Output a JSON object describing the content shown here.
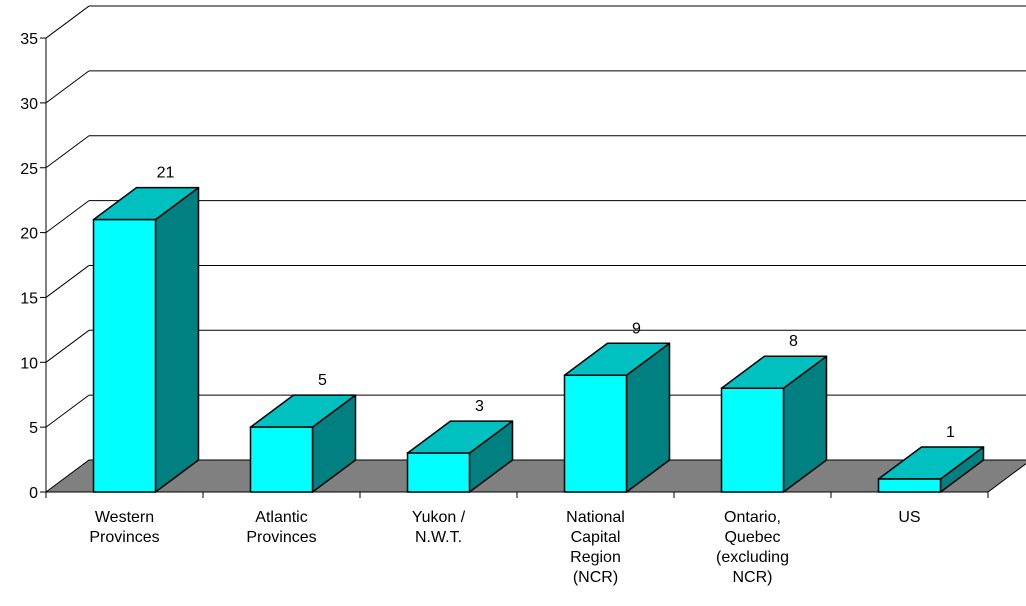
{
  "chart_data": {
    "type": "bar",
    "style": "3d-column",
    "categories": [
      [
        "Western",
        "Provinces"
      ],
      [
        "Atlantic",
        "Provinces"
      ],
      [
        "Yukon /",
        "N.W.T."
      ],
      [
        "National",
        "Capital",
        "Region",
        "(NCR)"
      ],
      [
        "Ontario,",
        "Quebec",
        "(excluding",
        "NCR)"
      ],
      [
        "US"
      ]
    ],
    "values": [
      21,
      5,
      3,
      9,
      8,
      1
    ],
    "data_labels": [
      "21",
      "5",
      "3",
      "9",
      "8",
      "1"
    ],
    "ylim": [
      0,
      35
    ],
    "yticks": [
      0,
      5,
      10,
      15,
      20,
      25,
      30,
      35
    ],
    "grid": true,
    "legend": "none",
    "title": "",
    "xlabel": "",
    "ylabel": "",
    "colors": {
      "bar_front": "#00FFFF",
      "bar_top": "#00C0C0",
      "bar_side": "#008080",
      "floor": "#808080",
      "gridline": "#000000"
    }
  }
}
